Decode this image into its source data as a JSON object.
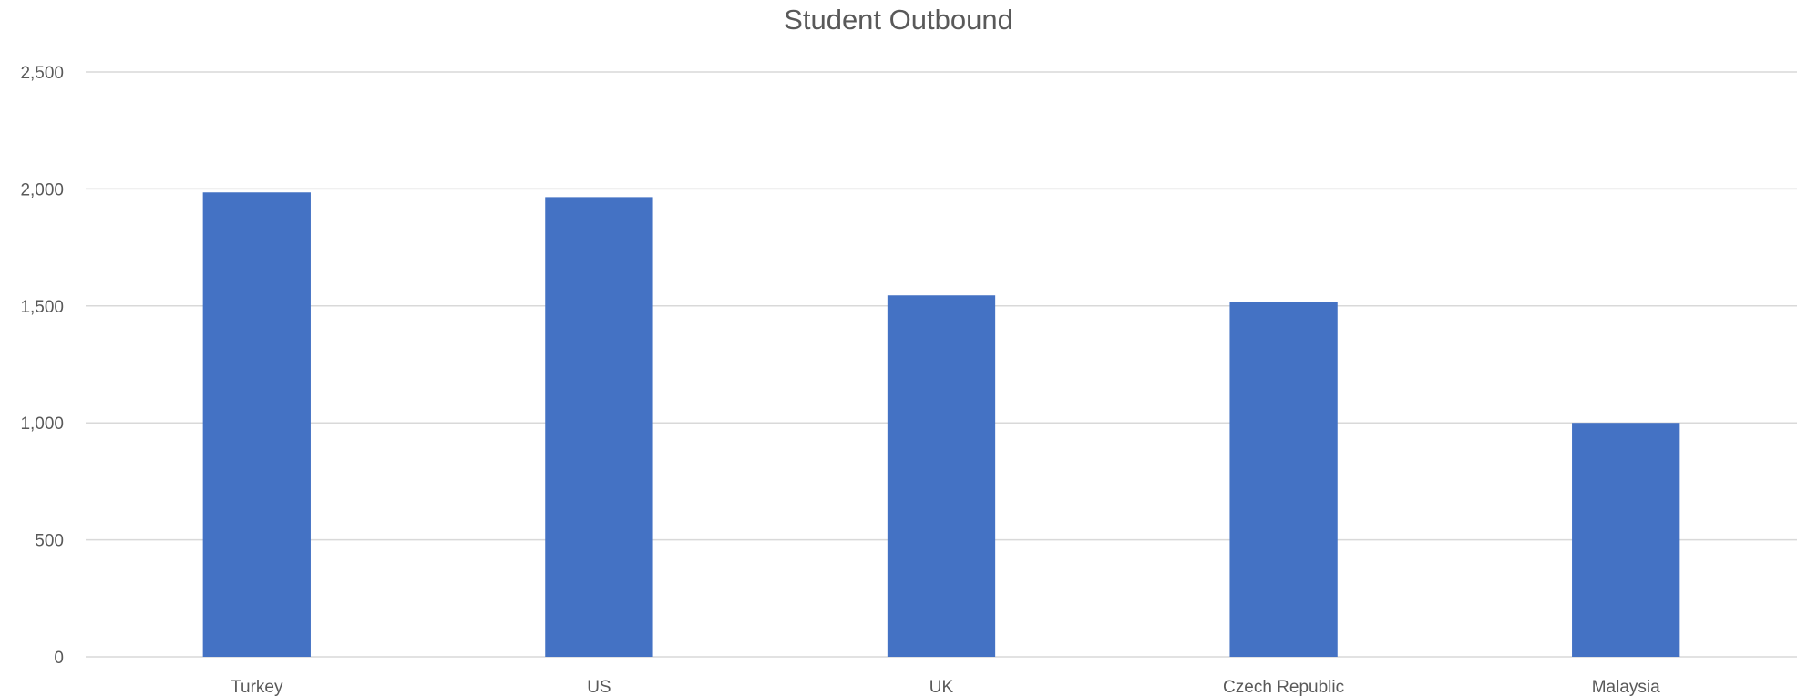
{
  "chart_data": {
    "type": "bar",
    "title": "Student Outbound",
    "xlabel": "",
    "ylabel": "",
    "categories": [
      "Turkey",
      "US",
      "UK",
      "Czech Republic",
      "Malaysia"
    ],
    "values": [
      1985,
      1965,
      1545,
      1515,
      1000
    ],
    "ylim": [
      0,
      2500
    ],
    "yticks": [
      0,
      500,
      1000,
      1500,
      2000,
      2500
    ],
    "ytick_labels": [
      "0",
      "500",
      "1,000",
      "1,500",
      "2,000",
      "2,500"
    ],
    "grid": true,
    "legend": "none",
    "bar_color": "#4472C4",
    "grid_color": "#D9D9D9"
  }
}
